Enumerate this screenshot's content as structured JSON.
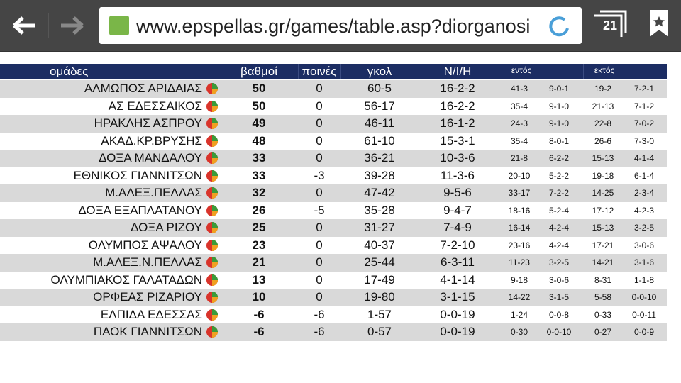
{
  "browser": {
    "url": "www.epspellas.gr/games/table.asp?diorganosi",
    "tab_count": "21"
  },
  "table": {
    "headers": [
      "ομάδες",
      "βαθμοί",
      "ποινές",
      "γκολ",
      "Ν/Ι/Η",
      "εντός",
      "εκτός"
    ],
    "rows": [
      [
        "ΑΛΜΩΠΟΣ ΑΡΙΔΑΙΑΣ",
        "50",
        "0",
        "60-5",
        "16-2-2",
        "41-3",
        "9-0-1",
        "19-2",
        "7-2-1"
      ],
      [
        "ΑΣ ΕΔΕΣΣΑΙΚΟΣ",
        "50",
        "0",
        "56-17",
        "16-2-2",
        "35-4",
        "9-1-0",
        "21-13",
        "7-1-2"
      ],
      [
        "ΗΡΑΚΛΗΣ ΑΣΠΡΟΥ",
        "49",
        "0",
        "46-11",
        "16-1-2",
        "24-3",
        "9-1-0",
        "22-8",
        "7-0-2"
      ],
      [
        "ΑΚΑΔ.ΚΡ.ΒΡΥΣΗΣ",
        "48",
        "0",
        "61-10",
        "15-3-1",
        "35-4",
        "8-0-1",
        "26-6",
        "7-3-0"
      ],
      [
        "ΔΟΞΑ ΜΑΝΔΑΛΟΥ",
        "33",
        "0",
        "36-21",
        "10-3-6",
        "21-8",
        "6-2-2",
        "15-13",
        "4-1-4"
      ],
      [
        "ΕΘΝΙΚΟΣ ΓΙΑΝΝΙΤΣΩΝ",
        "33",
        "-3",
        "39-28",
        "11-3-6",
        "20-10",
        "5-2-2",
        "19-18",
        "6-1-4"
      ],
      [
        "Μ.ΑΛΕΞ.ΠΕΛΛΑΣ",
        "32",
        "0",
        "47-42",
        "9-5-6",
        "33-17",
        "7-2-2",
        "14-25",
        "2-3-4"
      ],
      [
        "ΔΟΞΑ ΕΞΑΠΛΑΤΑΝΟΥ",
        "26",
        "-5",
        "35-28",
        "9-4-7",
        "18-16",
        "5-2-4",
        "17-12",
        "4-2-3"
      ],
      [
        "ΔΟΞΑ ΡΙΖΟΥ",
        "25",
        "0",
        "31-27",
        "7-4-9",
        "16-14",
        "4-2-4",
        "15-13",
        "3-2-5"
      ],
      [
        "ΟΛΥΜΠΟΣ ΑΨΑΛΟΥ",
        "23",
        "0",
        "40-37",
        "7-2-10",
        "23-16",
        "4-2-4",
        "17-21",
        "3-0-6"
      ],
      [
        "Μ.ΑΛΕΞ.Ν.ΠΕΛΛΑΣ",
        "21",
        "0",
        "25-44",
        "6-3-11",
        "11-23",
        "3-2-5",
        "14-21",
        "3-1-6"
      ],
      [
        "ΟΛΥΜΠΙΑΚΟΣ ΓΑΛΑΤΑΔΩΝ",
        "13",
        "0",
        "17-49",
        "4-1-14",
        "9-18",
        "3-0-6",
        "8-31",
        "1-1-8"
      ],
      [
        "ΟΡΦΕΑΣ ΡΙΖΑΡΙΟΥ",
        "10",
        "0",
        "19-80",
        "3-1-15",
        "14-22",
        "3-1-5",
        "5-58",
        "0-0-10"
      ],
      [
        "ΕΛΠΙΔΑ ΕΔΕΣΣΑΣ",
        "-6",
        "-6",
        "1-57",
        "0-0-19",
        "1-24",
        "0-0-8",
        "0-33",
        "0-0-11"
      ],
      [
        "ΠΑΟΚ ΓΙΑΝΝΙΤΣΩΝ",
        "-6",
        "-6",
        "0-57",
        "0-0-19",
        "0-30",
        "0-0-10",
        "0-27",
        "0-0-9"
      ]
    ]
  }
}
